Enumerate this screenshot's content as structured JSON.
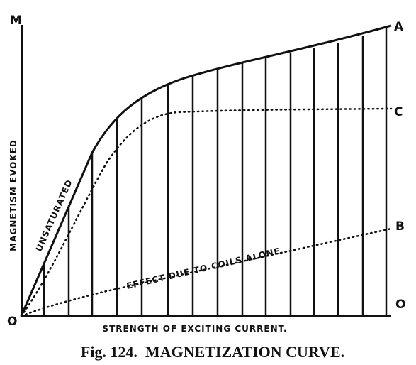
{
  "labels": {
    "m": "M",
    "a": "A",
    "c": "C",
    "b": "B",
    "origin": "O",
    "right_origin": "O"
  },
  "axis_titles": {
    "vertical": "MAGNETISM EVOKED",
    "horizontal": "STRENGTH OF EXCITING CURRENT."
  },
  "annotations": {
    "unsaturated": "UNSATURATED",
    "coils": "EFFECT DUE TO COILS ALONE"
  },
  "caption": "Fig. 124.  MAGNETIZATION CURVE."
}
